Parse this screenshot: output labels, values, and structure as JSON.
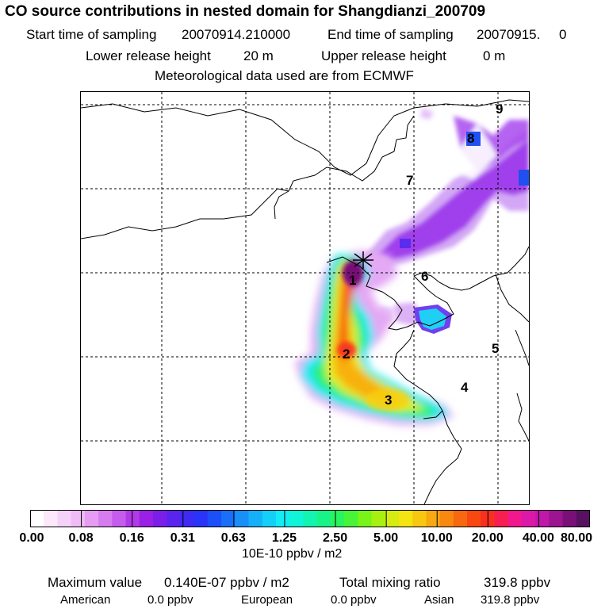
{
  "header": {
    "title": "CO  source contributions in nested domain for Shangdianzi_200709",
    "start_label": "Start time of sampling",
    "start_value": "20070914.210000",
    "end_label": "End time of sampling",
    "end_value": "20070915.     0",
    "lower_label": "Lower release height",
    "lower_value": "20 m",
    "upper_label": "Upper release height",
    "upper_value": "0 m",
    "met_line": "Meteorological data used are from ECMWF"
  },
  "map": {
    "site_marker_icon": "asterisk-icon",
    "labels": [
      "1",
      "2",
      "3",
      "4",
      "5",
      "6",
      "7",
      "8",
      "9"
    ]
  },
  "colorbar": {
    "colors": [
      "#ffffff",
      "#fbe8fb",
      "#f5d2f8",
      "#efbcf5",
      "#e59cf2",
      "#d77cef",
      "#c65cec",
      "#b13ae8",
      "#9a20e6",
      "#7b1ee8",
      "#5a24ee",
      "#3d2bf4",
      "#2835f8",
      "#1c4ff8",
      "#1a6ff8",
      "#1890f8",
      "#16b0f8",
      "#14d0f8",
      "#12ecf4",
      "#10f4d8",
      "#12f4b0",
      "#18f488",
      "#28f460",
      "#48f438",
      "#78f418",
      "#a8f010",
      "#d4ec10",
      "#f4e410",
      "#f8c810",
      "#f8a810",
      "#f88810",
      "#f86810",
      "#f84810",
      "#f83020",
      "#f81e50",
      "#f0188c",
      "#dc18a8",
      "#c018a8",
      "#9c1490",
      "#781078",
      "#581060"
    ],
    "tick_labels": [
      "0.00",
      "0.08",
      "0.16",
      "0.31",
      "0.63",
      "1.25",
      "2.50",
      "5.00",
      "10.00",
      "20.00",
      "40.00",
      "80.00"
    ],
    "unit": "10E-10 ppbv / m2"
  },
  "footer": {
    "max_label": "Maximum value",
    "max_value": "0.140E-07 ppbv / m2",
    "total_label": "Total mixing ratio",
    "total_value": "319.8 ppbv",
    "american_label": "American",
    "american_value": "0.0 ppbv",
    "european_label": "European",
    "european_value": "0.0 ppbv",
    "asian_label": "Asian",
    "asian_value": "319.8 ppbv"
  }
}
